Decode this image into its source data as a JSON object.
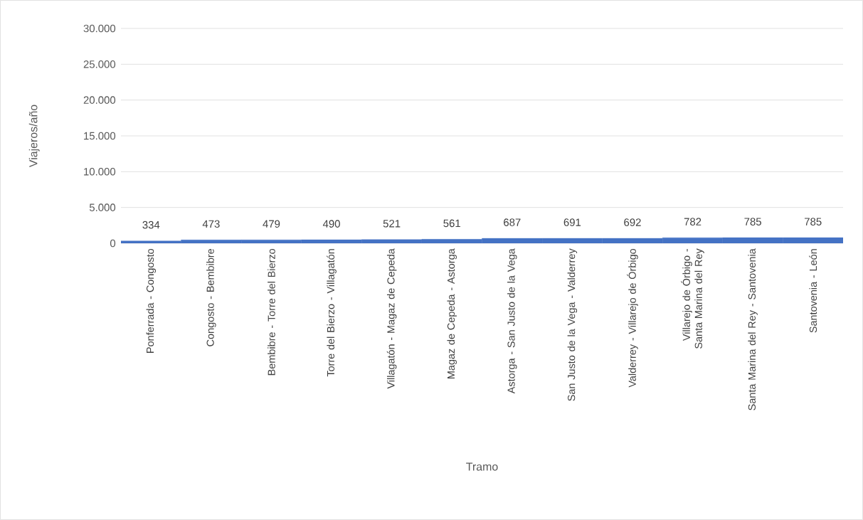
{
  "chart_data": {
    "type": "bar",
    "xlabel": "Tramo",
    "ylabel": "Viajeros/año",
    "categories": [
      "Ponferrada - Congosto",
      "Congosto - Bembibre",
      "Bembibre - Torre del Bierzo",
      "Torre del Bierzo - Villagatón",
      "Villagatón - Magaz de Cepeda",
      "Magaz de Cepeda - Astorga",
      "Astorga - San Justo de la Vega",
      "San Justo de la Vega - Valderrey",
      "Valderrey - Villarejo de Órbigo",
      "Villarejo de Órbigo - Santa Marina del Rey",
      "Santa Marina del Rey - Santovenia",
      "Santovenia - León"
    ],
    "values": [
      334,
      473,
      479,
      490,
      521,
      561,
      687,
      691,
      692,
      782,
      785,
      785
    ],
    "color": "#4472c4",
    "data_labels": true,
    "grid": "y",
    "ylim": [
      0,
      30000
    ],
    "yticks": [
      0,
      {
        "value": 5000,
        "label": "5.000"
      },
      {
        "value": 10000,
        "label": "10.000"
      },
      {
        "value": 15000,
        "label": "15.000"
      },
      {
        "value": 20000,
        "label": "20.000"
      },
      {
        "value": 25000,
        "label": "25.000"
      },
      {
        "value": 30000,
        "label": "30.000"
      }
    ]
  }
}
